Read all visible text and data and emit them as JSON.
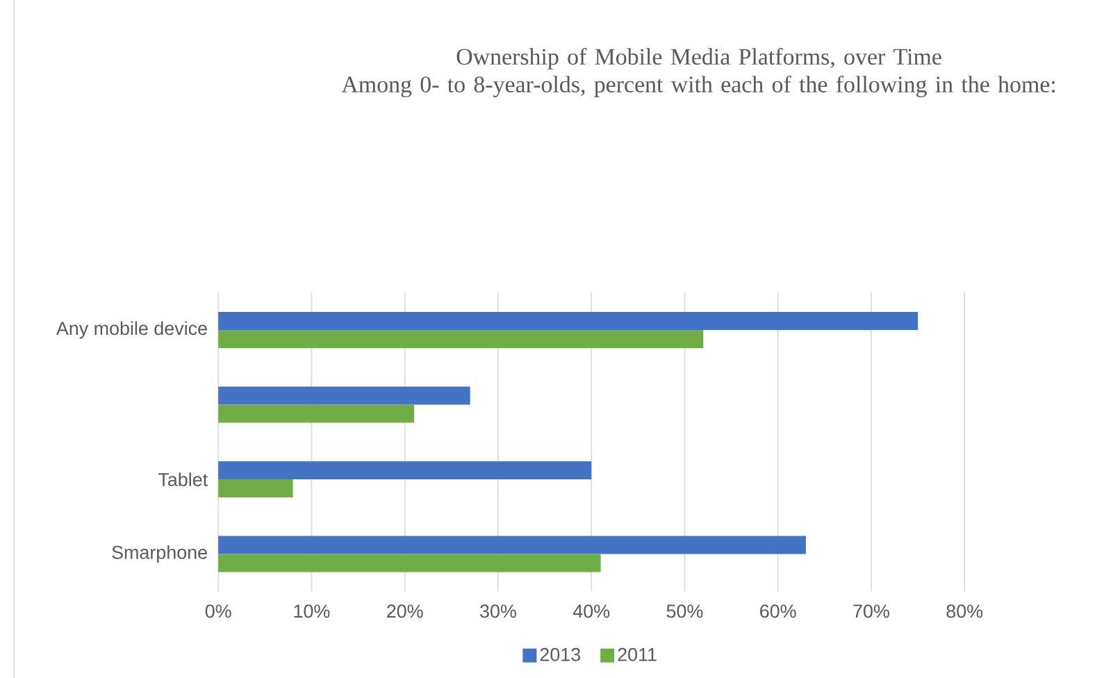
{
  "chart_data": {
    "type": "bar",
    "orientation": "horizontal",
    "title": "Ownership of Mobile Media Platforms, over Time",
    "subtitle": "Among 0- to 8-year-olds, percent with each of the following in the home:",
    "categories": [
      "Any mobile device",
      null,
      "Tablet",
      "Smarphone"
    ],
    "series": [
      {
        "name": "2013",
        "color": "#4472c4",
        "values": [
          75,
          27,
          40,
          63
        ]
      },
      {
        "name": "2011",
        "color": "#70ad47",
        "values": [
          52,
          21,
          8,
          41
        ]
      }
    ],
    "xlim": [
      0,
      80
    ],
    "xticks": [
      {
        "value": 0,
        "label": "0%"
      },
      {
        "value": 10,
        "label": "10%"
      },
      {
        "value": 20,
        "label": "20%"
      },
      {
        "value": 30,
        "label": "30%"
      },
      {
        "value": 40,
        "label": "40%"
      },
      {
        "value": 50,
        "label": "50%"
      },
      {
        "value": 60,
        "label": "60%"
      },
      {
        "value": 70,
        "label": "70%"
      },
      {
        "value": 80,
        "label": "80%"
      }
    ],
    "grid": "x",
    "legend": "bottom"
  }
}
